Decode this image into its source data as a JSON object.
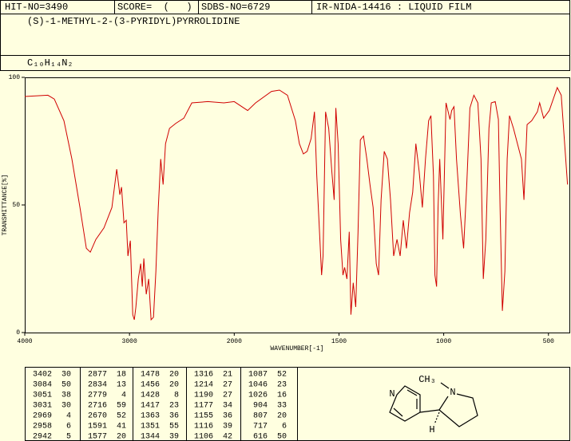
{
  "header": {
    "hit_no": "HIT-NO=3490",
    "score": "SCORE=  (   )",
    "sdbs_no": "SDBS-NO=6729",
    "ir": "IR-NIDA-14416 : LIQUID FILM"
  },
  "compound": {
    "name": "(S)-1-METHYL-2-(3-PYRIDYL)PYRROLIDINE",
    "formula": "C₁₀H₁₄N₂"
  },
  "chart_data": {
    "type": "line",
    "x_label": "WAVENUMBER[-1]",
    "y_label": "TRANSMITTANCE[%]",
    "color": "#d00000",
    "xlim": [
      4000,
      400
    ],
    "x_scale_break": 2000,
    "xticks": [
      4000,
      3000,
      2000,
      1500,
      1000,
      500
    ],
    "ylim": [
      0,
      100
    ],
    "yticks": [
      0,
      50,
      100
    ],
    "x": [
      4000,
      3779,
      3718,
      3626,
      3550,
      3473,
      3412,
      3374,
      3321,
      3244,
      3168,
      3122,
      3092,
      3076,
      3053,
      3031,
      3015,
      2992,
      2969,
      2954,
      2939,
      2916,
      2893,
      2878,
      2863,
      2840,
      2817,
      2794,
      2771,
      2748,
      2725,
      2702,
      2679,
      2656,
      2618,
      2557,
      2481,
      2405,
      2252,
      2099,
      2000,
      1936,
      1898,
      1822,
      1784,
      1746,
      1708,
      1689,
      1670,
      1652,
      1633,
      1617,
      1606,
      1595,
      1583,
      1576,
      1564,
      1549,
      1534,
      1523,
      1515,
      1504,
      1492,
      1481,
      1473,
      1462,
      1451,
      1443,
      1432,
      1420,
      1409,
      1398,
      1383,
      1367,
      1352,
      1337,
      1322,
      1311,
      1299,
      1284,
      1269,
      1254,
      1239,
      1223,
      1208,
      1193,
      1178,
      1163,
      1148,
      1133,
      1117,
      1102,
      1087,
      1072,
      1061,
      1049,
      1042,
      1034,
      1027,
      1019,
      1004,
      989,
      970,
      962,
      951,
      939,
      920,
      905,
      890,
      875,
      856,
      837,
      822,
      811,
      799,
      784,
      773,
      754,
      739,
      731,
      720,
      708,
      697,
      686,
      667,
      648,
      629,
      617,
      602,
      580,
      553,
      542,
      523,
      496,
      458,
      439,
      409
    ],
    "values": [
      92.5,
      93,
      91.5,
      83,
      68,
      49,
      33,
      31.5,
      36.5,
      41,
      49,
      64,
      54,
      57,
      43,
      44,
      30,
      36,
      7,
      5,
      10,
      21,
      27,
      18,
      29,
      15,
      21,
      5,
      6,
      24,
      49,
      68,
      58,
      74,
      80,
      82,
      84,
      90,
      90.5,
      90,
      90.5,
      87,
      90,
      94.5,
      95,
      93,
      83,
      74,
      70,
      71,
      76,
      86.5,
      61.5,
      43,
      22.5,
      30,
      86.5,
      80,
      63,
      52,
      88,
      74,
      36.5,
      22.5,
      25.5,
      21,
      39.5,
      7,
      19.5,
      10,
      39.5,
      75.5,
      77,
      68,
      58,
      49,
      27,
      22.5,
      52,
      71,
      68,
      52,
      30,
      36.5,
      30,
      44,
      33,
      47,
      55,
      74,
      63,
      49,
      68,
      83,
      85,
      61.5,
      22.5,
      18,
      49,
      68,
      36.5,
      90,
      83.5,
      87,
      88.5,
      68,
      46,
      33,
      58,
      88,
      93,
      90,
      68,
      21,
      36.5,
      80,
      90,
      90.5,
      83.5,
      49,
      8.5,
      24,
      68,
      85,
      80,
      74,
      68,
      52,
      81.5,
      83,
      86.5,
      90,
      84,
      87,
      96,
      93,
      58
    ]
  },
  "peak_table": {
    "rows": [
      [
        3402,
        30,
        2877,
        18,
        1478,
        20,
        1316,
        21,
        1087,
        52
      ],
      [
        3084,
        50,
        2834,
        13,
        1456,
        20,
        1214,
        27,
        1046,
        23
      ],
      [
        3051,
        38,
        2779,
        4,
        1428,
        8,
        1190,
        27,
        1026,
        16
      ],
      [
        3031,
        30,
        2716,
        59,
        1417,
        23,
        1177,
        34,
        904,
        33
      ],
      [
        2969,
        4,
        2670,
        52,
        1363,
        36,
        1155,
        36,
        807,
        20
      ],
      [
        2958,
        6,
        1591,
        41,
        1351,
        55,
        1116,
        39,
        717,
        6
      ],
      [
        2942,
        5,
        1577,
        20,
        1344,
        39,
        1106,
        42,
        616,
        50
      ]
    ]
  },
  "structure": {
    "ring_n": "N",
    "pyrrolidine_n": "N",
    "methyl": "CH₃",
    "hydrogen": "H"
  }
}
